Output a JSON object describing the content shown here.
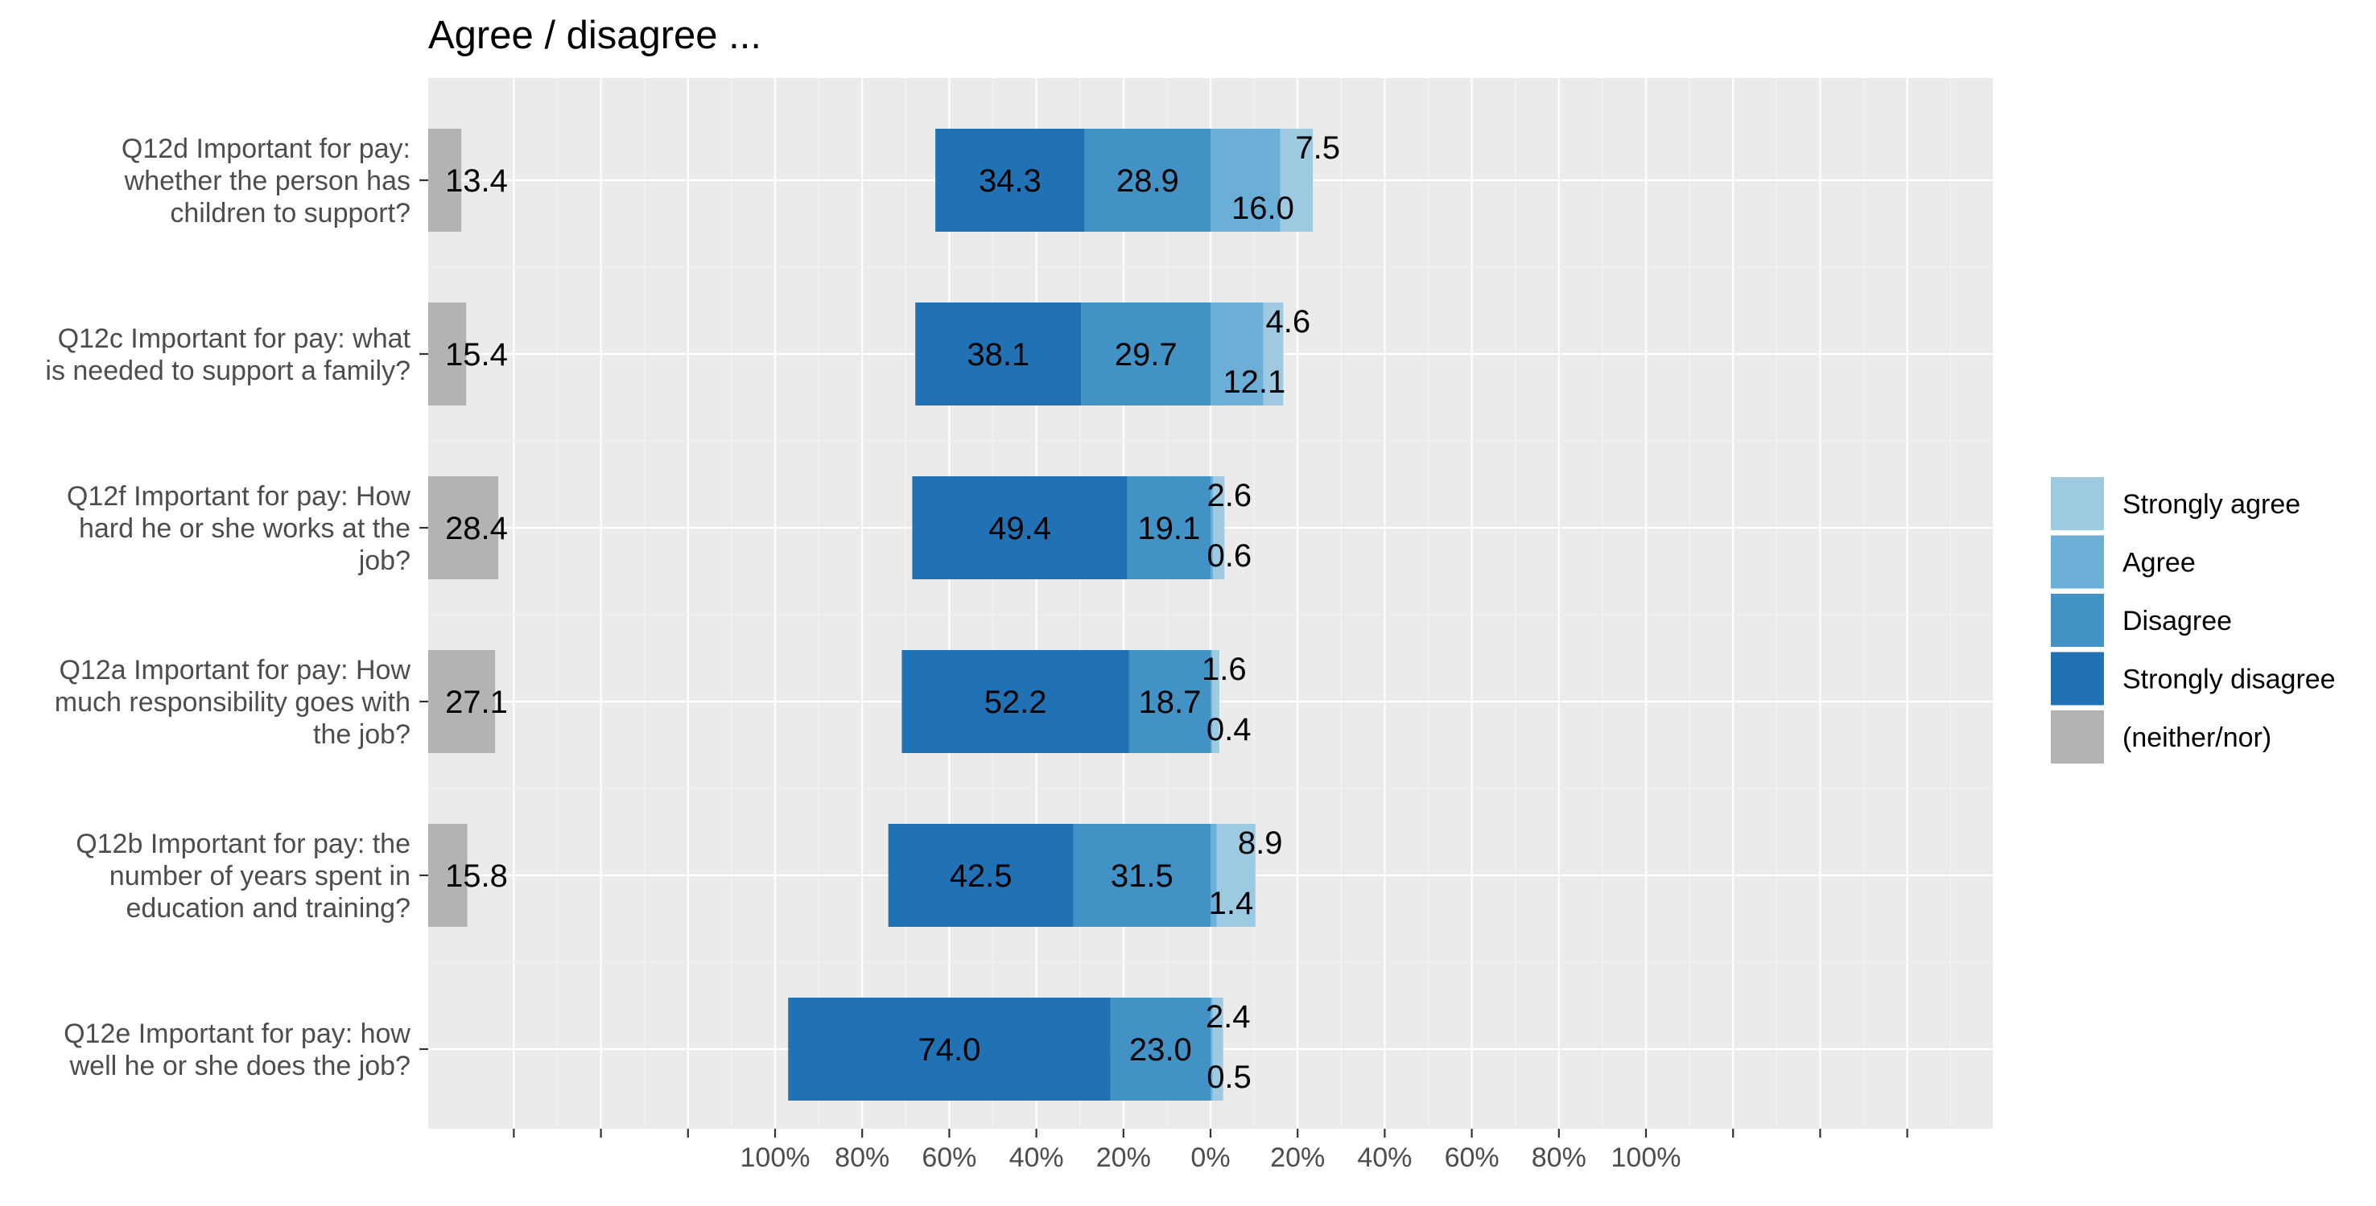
{
  "chart_data": {
    "type": "bar",
    "orientation": "horizontal",
    "stacked": "diverging",
    "title": "Agree / disagree ...",
    "categories": [
      [
        "Q12d Important for pay:",
        "whether the person has",
        "children to support?"
      ],
      [
        "Q12c Important for pay: what",
        "is needed to support a family?"
      ],
      [
        "Q12f Important for pay: How",
        "hard he or she works at the",
        "job?"
      ],
      [
        "Q12a Important for pay: How",
        "much responsibility goes with",
        "the job?"
      ],
      [
        "Q12b Important for pay: the",
        "number of years spent in",
        "education and training?"
      ],
      [
        "Q12e Important for pay: how",
        "well he or she does the job?"
      ]
    ],
    "series": [
      {
        "name": "Strongly agree",
        "color": "#9ecae1",
        "side": "positive",
        "values": [
          7.5,
          4.6,
          2.6,
          1.6,
          8.9,
          2.4
        ]
      },
      {
        "name": "Agree",
        "color": "#6baed6",
        "side": "positive",
        "values": [
          16.0,
          12.1,
          0.6,
          0.4,
          1.4,
          0.5
        ]
      },
      {
        "name": "Disagree",
        "color": "#4292c6",
        "side": "negative",
        "values": [
          28.9,
          29.7,
          19.1,
          18.7,
          31.5,
          23.0
        ]
      },
      {
        "name": "Strongly disagree",
        "color": "#2171b5",
        "side": "negative",
        "values": [
          34.3,
          38.1,
          49.4,
          52.2,
          42.5,
          74.0
        ]
      },
      {
        "name": "(neither/nor)",
        "color": "#b3b3b3",
        "side": "separate",
        "values": [
          13.4,
          15.4,
          28.4,
          27.1,
          15.8,
          null
        ]
      }
    ],
    "x_ticks": [
      "100%",
      "80%",
      "60%",
      "40%",
      "20%",
      "0%",
      "20%",
      "40%",
      "60%",
      "80%",
      "100%"
    ],
    "x_tick_values": [
      -100,
      -80,
      -60,
      -40,
      -20,
      0,
      20,
      40,
      60,
      80,
      100
    ],
    "xlim": [
      -180,
      180
    ],
    "grid": true,
    "legend_position": "right"
  }
}
